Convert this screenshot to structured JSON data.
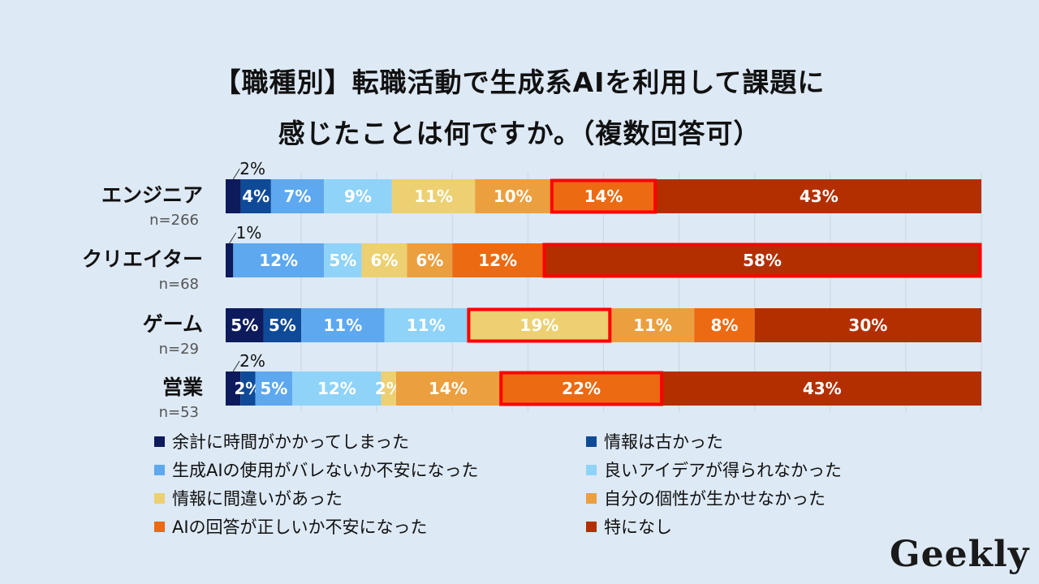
{
  "title_line1": "【職種別】転職活動で生成系AIを利用して課題に",
  "title_line2": "感じたことは何ですか。（複数回答可）",
  "logo_text": "Geekly",
  "chart_data": {
    "type": "bar",
    "orientation": "horizontal-stacked-100",
    "xlim": [
      0,
      100
    ],
    "grid": true,
    "legend_position": "bottom",
    "series": [
      {
        "name": "余計に時間がかかってしまった",
        "color": "#0d1a5c"
      },
      {
        "name": "情報は古かった",
        "color": "#0f4a98"
      },
      {
        "name": "生成AIの使用がバレないか不安になった",
        "color": "#5da8ef"
      },
      {
        "name": "良いアイデアが得られなかった",
        "color": "#8fd3f8"
      },
      {
        "name": "情報に間違いがあった",
        "color": "#ecd072"
      },
      {
        "name": "自分の個性が生かせなかった",
        "color": "#eb9f3f"
      },
      {
        "name": "AIの回答が正しいか不安になった",
        "color": "#ec6a12"
      },
      {
        "name": "特になし",
        "color": "#b32f00"
      }
    ],
    "categories": [
      {
        "label": "エンジニア",
        "n": "n=266",
        "values": [
          2,
          4,
          7,
          9,
          11,
          10,
          14,
          43
        ],
        "labels": [
          "2%",
          "4%",
          "7%",
          "9%",
          "11%",
          "10%",
          "14%",
          "43%"
        ],
        "highlight": 6
      },
      {
        "label": "クリエイター",
        "n": "n=68",
        "values": [
          1,
          0,
          12,
          5,
          6,
          6,
          12,
          58
        ],
        "labels": [
          "1%",
          "",
          "12%",
          "5%",
          "6%",
          "6%",
          "12%",
          "58%"
        ],
        "highlight": 7
      },
      {
        "label": "ゲーム",
        "n": "n=29",
        "values": [
          5,
          5,
          11,
          11,
          19,
          11,
          8,
          30
        ],
        "labels": [
          "5%",
          "5%",
          "11%",
          "11%",
          "19%",
          "11%",
          "8%",
          "30%"
        ],
        "highlight": 4
      },
      {
        "label": "営業",
        "n": "n=53",
        "values": [
          2,
          2,
          5,
          12,
          2,
          14,
          22,
          43
        ],
        "labels": [
          "2%",
          "2%",
          "5%",
          "12%",
          "2%",
          "14%",
          "22%",
          "43%"
        ],
        "highlight": 6
      }
    ],
    "callouts": [
      {
        "row": 0,
        "segment": 0,
        "text": "2%"
      },
      {
        "row": 1,
        "segment": 0,
        "text": "1%"
      },
      {
        "row": 3,
        "segment": 0,
        "text": "2%"
      }
    ]
  }
}
